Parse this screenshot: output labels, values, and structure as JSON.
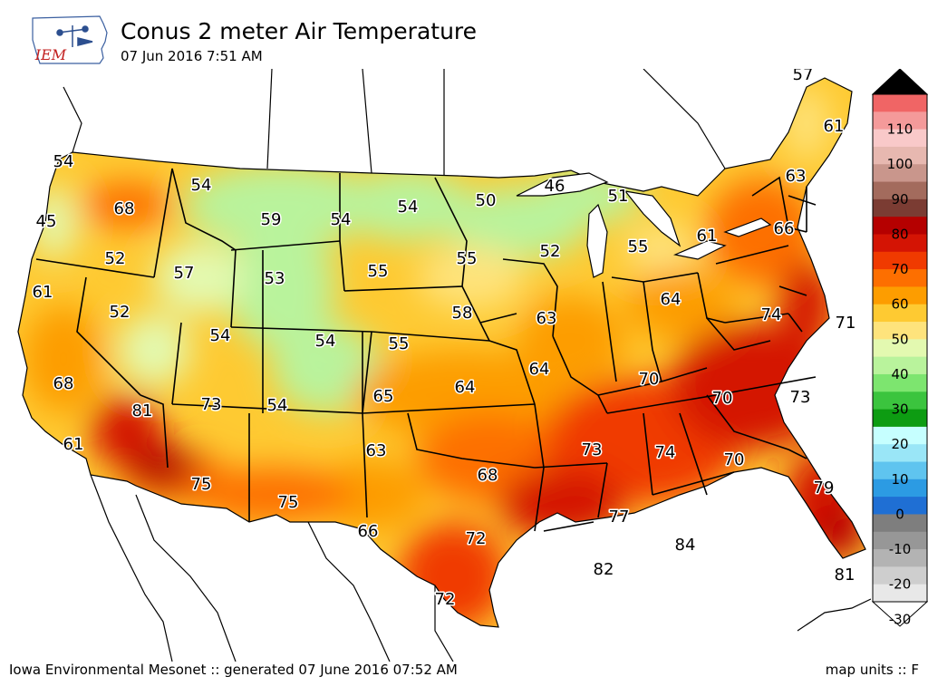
{
  "header": {
    "logo_text": "IEM",
    "title": "Conus 2 meter Air Temperature",
    "subtitle": "07 Jun 2016 7:51 AM"
  },
  "footer": {
    "credit": "Iowa Environmental Mesonet :: generated 07 June 2016 07:52 AM",
    "units": "map units :: F"
  },
  "colorbar": {
    "ticks": [
      "110",
      "100",
      "90",
      "80",
      "70",
      "60",
      "50",
      "40",
      "30",
      "20",
      "10",
      "0",
      "-10",
      "-20",
      "-30"
    ],
    "colors": [
      "#000000",
      "#f06565",
      "#f49a9a",
      "#f9c9c9",
      "#e7b8b0",
      "#c9968c",
      "#a36b5d",
      "#7b3c33",
      "#b50000",
      "#d41404",
      "#f03a00",
      "#fd6f00",
      "#fd9d00",
      "#feca32",
      "#fee37c",
      "#e3f9b0",
      "#b9f39c",
      "#7de56f",
      "#3bc43e",
      "#0d9c12",
      "#c6ffff",
      "#9ae6f7",
      "#5fc4ef",
      "#2c9be3",
      "#1f6fd4",
      "#7e7e7e",
      "#979797",
      "#b3b3b3",
      "#cecece",
      "#e8e8e8",
      "#ffffff"
    ]
  },
  "map_labels": [
    {
      "text": "54"
    },
    {
      "text": "68"
    },
    {
      "text": "54"
    },
    {
      "text": "59"
    },
    {
      "text": "54"
    },
    {
      "text": "54"
    },
    {
      "text": "50"
    },
    {
      "text": "46"
    },
    {
      "text": "51"
    },
    {
      "text": "45"
    },
    {
      "text": "52"
    },
    {
      "text": "57"
    },
    {
      "text": "53"
    },
    {
      "text": "55"
    },
    {
      "text": "55"
    },
    {
      "text": "52"
    },
    {
      "text": "55"
    },
    {
      "text": "61"
    },
    {
      "text": "66"
    },
    {
      "text": "63"
    },
    {
      "text": "61"
    },
    {
      "text": "57"
    },
    {
      "text": "61"
    },
    {
      "text": "52"
    },
    {
      "text": "54"
    },
    {
      "text": "54"
    },
    {
      "text": "55"
    },
    {
      "text": "58"
    },
    {
      "text": "63"
    },
    {
      "text": "64"
    },
    {
      "text": "74"
    },
    {
      "text": "71"
    },
    {
      "text": "68"
    },
    {
      "text": "81"
    },
    {
      "text": "73"
    },
    {
      "text": "54"
    },
    {
      "text": "65"
    },
    {
      "text": "64"
    },
    {
      "text": "64"
    },
    {
      "text": "70"
    },
    {
      "text": "70"
    },
    {
      "text": "73"
    },
    {
      "text": "61"
    },
    {
      "text": "75"
    },
    {
      "text": "75"
    },
    {
      "text": "63"
    },
    {
      "text": "68"
    },
    {
      "text": "73"
    },
    {
      "text": "74"
    },
    {
      "text": "70"
    },
    {
      "text": "79"
    },
    {
      "text": "66"
    },
    {
      "text": "72"
    },
    {
      "text": "77"
    },
    {
      "text": "84"
    },
    {
      "text": "82"
    },
    {
      "text": "81"
    },
    {
      "text": "72"
    }
  ]
}
